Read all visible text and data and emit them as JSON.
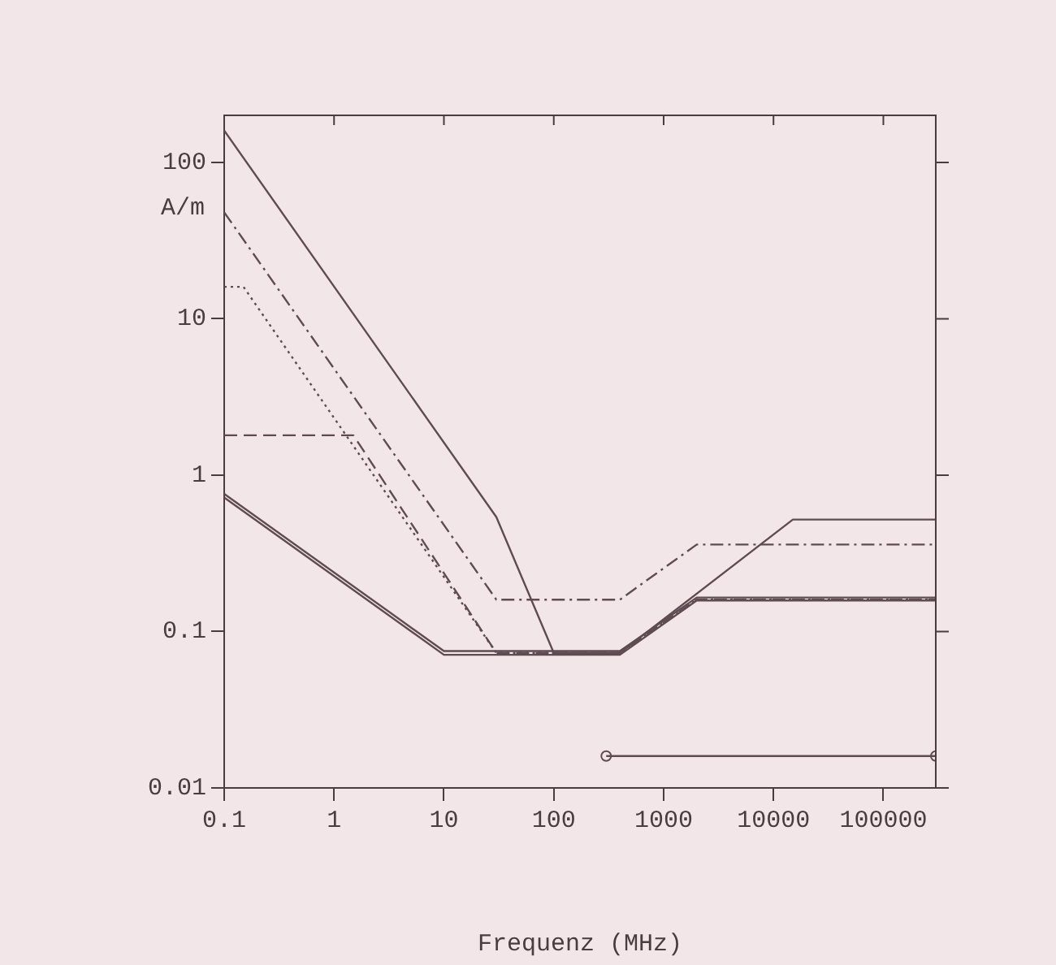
{
  "chart_data": {
    "type": "line",
    "xlabel": "Frequenz (MHz)",
    "ylabel": "A/m",
    "log": "xy",
    "grid": false,
    "legend": false,
    "xlim": [
      0.1,
      300000
    ],
    "ylim": [
      0.01,
      200
    ],
    "xticks": [
      0.1,
      1,
      10,
      100,
      1000,
      10000,
      100000
    ],
    "yticks": [
      0.01,
      0.1,
      1,
      10,
      100
    ],
    "series": [
      {
        "color": "#5e4c52",
        "line_style": "solid",
        "marker": "none",
        "x": [
          0.1,
          30,
          100,
          400,
          15000,
          300000
        ],
        "values": [
          160,
          0.54,
          0.073,
          0.073,
          0.52,
          0.52
        ]
      },
      {
        "color": "#5e4c52",
        "line_style": "dashdot",
        "marker": "none",
        "x": [
          0.1,
          30,
          400,
          2000,
          300000
        ],
        "values": [
          48,
          0.16,
          0.16,
          0.36,
          0.36
        ]
      },
      {
        "color": "#5e4c52",
        "line_style": "dotted",
        "marker": "none",
        "x": [
          0.1,
          0.15,
          30,
          400,
          2000,
          300000
        ],
        "values": [
          16,
          16,
          0.073,
          0.073,
          0.16,
          0.16
        ]
      },
      {
        "color": "#5e4c52",
        "line_style": "dashed",
        "marker": "none",
        "x": [
          0.1,
          1.5,
          30,
          400,
          2000,
          300000
        ],
        "values": [
          1.8,
          1.8,
          0.073,
          0.073,
          0.16,
          0.16
        ]
      },
      {
        "color": "#5e4c52",
        "line_style": "solid",
        "marker": "none",
        "x": [
          0.1,
          10,
          400,
          2000,
          300000
        ],
        "values": [
          0.76,
          0.075,
          0.075,
          0.165,
          0.165
        ]
      },
      {
        "color": "#5e4c52",
        "line_style": "solid",
        "marker": "none",
        "x": [
          0.1,
          10,
          400,
          2000,
          300000
        ],
        "values": [
          0.72,
          0.071,
          0.071,
          0.158,
          0.158
        ]
      },
      {
        "color": "#5e4c52",
        "line_style": "solid",
        "marker": "circle",
        "x": [
          300,
          300000
        ],
        "values": [
          0.016,
          0.016
        ]
      }
    ]
  }
}
